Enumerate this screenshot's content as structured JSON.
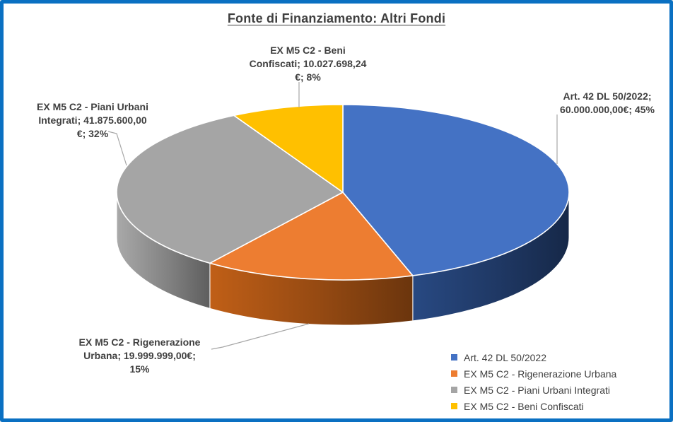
{
  "title": "Fonte di Finanziamento: Altri Fondi",
  "frame": {
    "border_color": "#0A70C2",
    "background": "#FFFFFF"
  },
  "chart_data": {
    "type": "pie",
    "is_3d": true,
    "title": "Fonte di Finanziamento: Altri Fondi",
    "start_angle_deg": 0,
    "direction": "clockwise",
    "legend_position": "bottom-right",
    "slices": [
      {
        "name": "Art. 42 DL 50/2022",
        "value": 60000000.0,
        "value_label": "60.000.000,00€",
        "pct": 45,
        "color": "#4472C4",
        "side_color": "#1F3864"
      },
      {
        "name": "EX M5 C2 - Rigenerazione Urbana",
        "value": 19999999.0,
        "value_label": "19.999.999,00€",
        "pct": 15,
        "color": "#ED7D31",
        "side_color": "#94491293"
      },
      {
        "name": "EX M5 C2 - Piani Urbani Integrati",
        "value": 41875600.0,
        "value_label": "41.875.600,00 €",
        "pct": 32,
        "color": "#A5A5A5",
        "side_color": "#828282"
      },
      {
        "name": "EX M5 C2 - Beni Confiscati",
        "value": 10027698.24,
        "value_label": "10.027.698,24 €",
        "pct": 8,
        "color": "#FFC000",
        "side_color": "#9C7500"
      }
    ]
  },
  "data_labels": {
    "art42": [
      "Art. 42 DL 50/2022;",
      "60.000.000,00€; 45%"
    ],
    "beni_confiscati": [
      "EX M5 C2 - Beni",
      "Confiscati; 10.027.698,24",
      "€; 8%"
    ],
    "piani_urbani": [
      "EX M5 C2 - Piani Urbani",
      "Integrati; 41.875.600,00",
      "€; 32%"
    ],
    "rigenerazione": [
      "EX M5 C2 - Rigenerazione",
      "Urbana; 19.999.999,00€;",
      "15%"
    ]
  },
  "legend": {
    "items": [
      {
        "label": "Art. 42 DL 50/2022",
        "color": "#4472C4"
      },
      {
        "label": "EX M5 C2 - Rigenerazione Urbana",
        "color": "#ED7D31"
      },
      {
        "label": "EX M5 C2 - Piani Urbani Integrati",
        "color": "#A5A5A5"
      },
      {
        "label": "EX M5 C2 - Beni Confiscati",
        "color": "#FFC000"
      }
    ]
  },
  "leader_line_color": "#A6A6A6"
}
